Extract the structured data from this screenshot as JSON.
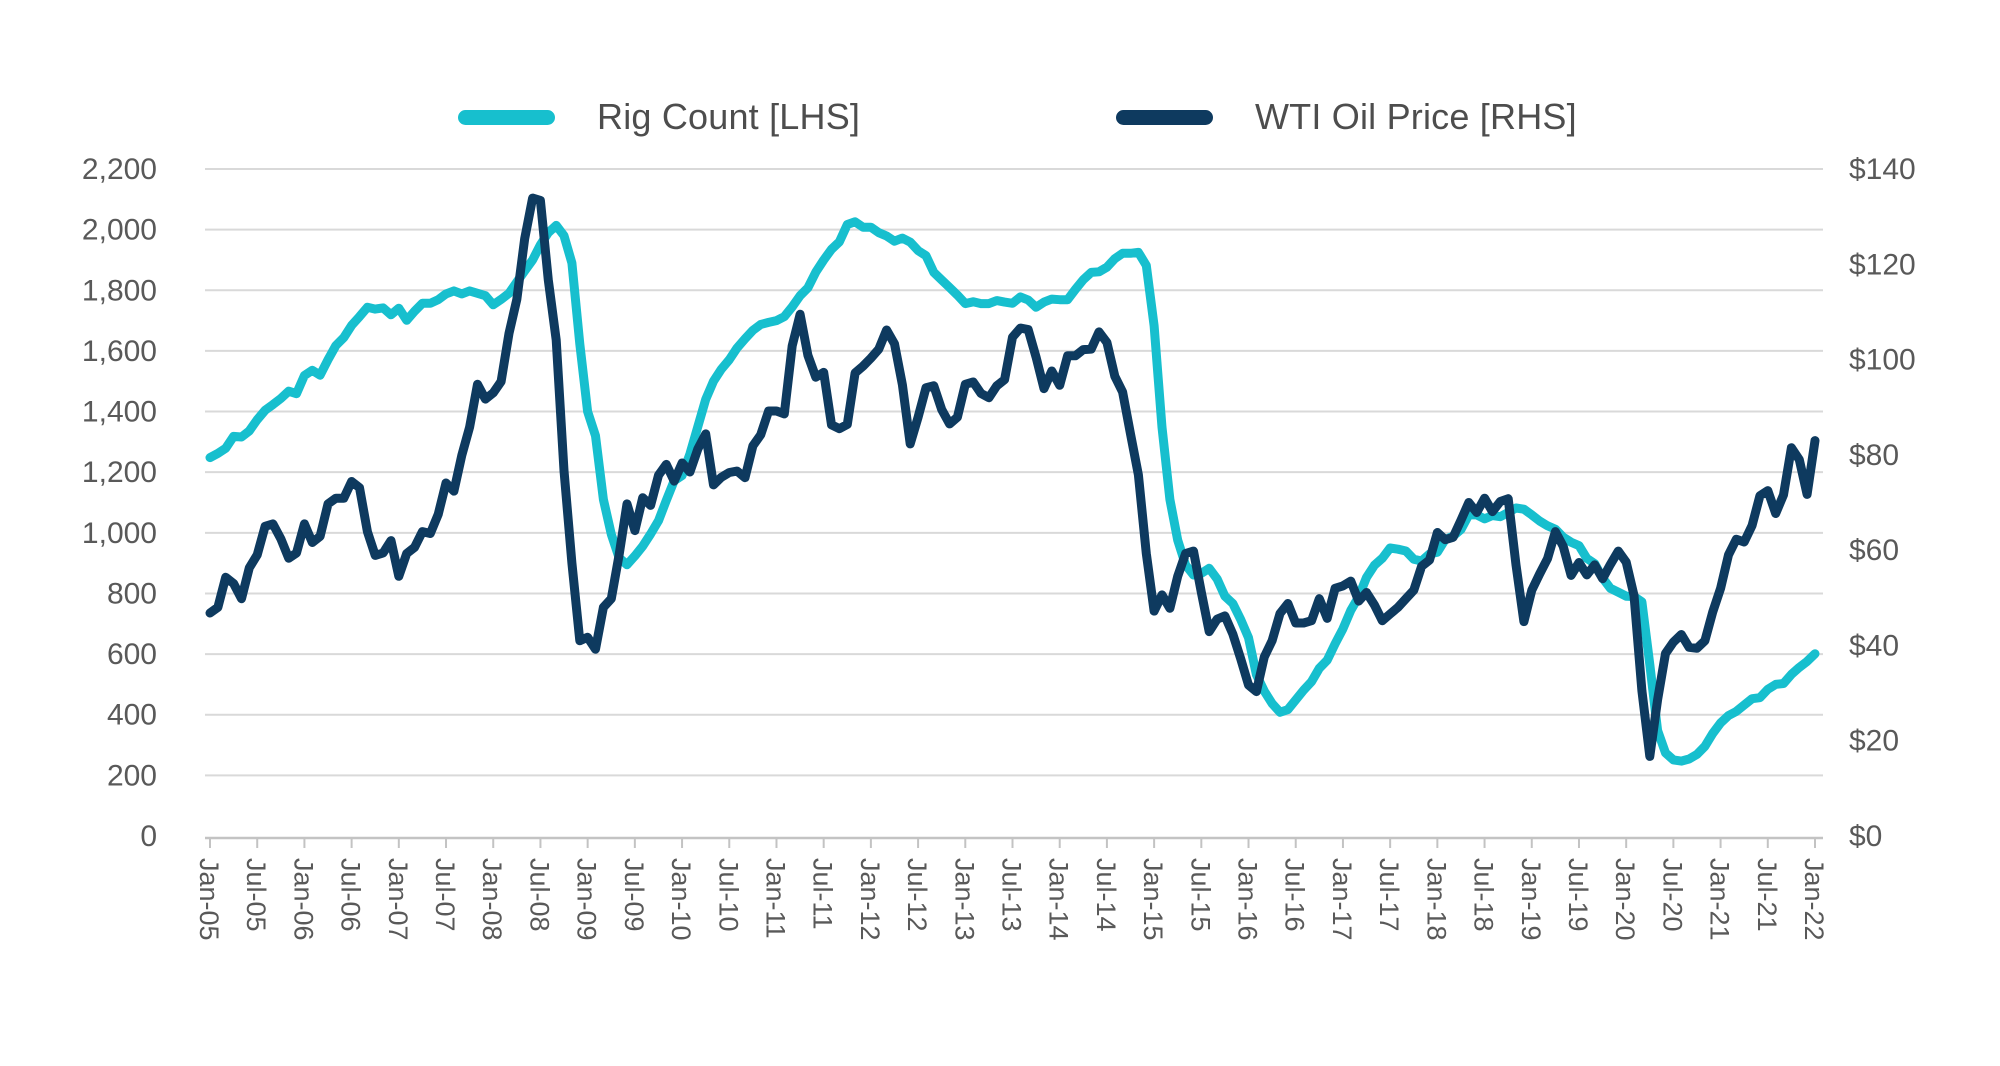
{
  "legend": {
    "items": [
      {
        "label": "Rig Count [LHS]",
        "color": "#17BFCE"
      },
      {
        "label": "WTI Oil Price [RHS]",
        "color": "#0E3A5F"
      }
    ]
  },
  "colors": {
    "rig_line": "#17BFCE",
    "wti_line": "#0E3A5F",
    "gridline": "#d9d9d9",
    "axis_line": "#c3c3c3",
    "tick_text": "#595959",
    "legend_text": "#4d4d4d",
    "background": "#ffffff"
  },
  "chart_data": {
    "type": "line",
    "title": "",
    "grid": "horizontal",
    "legend_position": "top",
    "x_interval": "monthly",
    "x_start": "Jan-05",
    "x_end": "Jan-22",
    "x_tick_labels": [
      "Jan-05",
      "Jul-05",
      "Jan-06",
      "Jul-06",
      "Jan-07",
      "Jul-07",
      "Jan-08",
      "Jul-08",
      "Jan-09",
      "Jul-09",
      "Jan-10",
      "Jul-10",
      "Jan-11",
      "Jul-11",
      "Jan-12",
      "Jul-12",
      "Jan-13",
      "Jul-13",
      "Jan-14",
      "Jul-14",
      "Jan-15",
      "Jul-15",
      "Jan-16",
      "Jul-16",
      "Jan-17",
      "Jul-17",
      "Jan-18",
      "Jul-18",
      "Jan-19",
      "Jul-19",
      "Jan-20",
      "Jul-20",
      "Jan-21",
      "Jul-21",
      "Jan-22"
    ],
    "left_axis": {
      "min": 0,
      "max": 2200,
      "tick_step": 200,
      "tick_labels": [
        "0",
        "200",
        "400",
        "600",
        "800",
        "1,000",
        "1,200",
        "1,400",
        "1,600",
        "1,800",
        "2,000",
        "2,200"
      ]
    },
    "right_axis": {
      "min": 0,
      "max": 140,
      "tick_step": 20,
      "tick_labels": [
        "$0",
        "$20",
        "$40",
        "$60",
        "$80",
        "$100",
        "$120",
        "$140"
      ]
    },
    "series": [
      {
        "name": "Rig Count [LHS]",
        "axis": "left",
        "color": "#17BFCE",
        "values": [
          1248,
          1262,
          1279,
          1318,
          1316,
          1336,
          1373,
          1404,
          1423,
          1443,
          1467,
          1459,
          1519,
          1536,
          1520,
          1571,
          1618,
          1644,
          1684,
          1713,
          1744,
          1738,
          1742,
          1719,
          1741,
          1701,
          1731,
          1757,
          1757,
          1769,
          1788,
          1798,
          1788,
          1798,
          1790,
          1782,
          1752,
          1770,
          1790,
          1827,
          1864,
          1900,
          1950,
          1990,
          2014,
          1980,
          1890,
          1623,
          1400,
          1320,
          1110,
          995,
          918,
          895,
          924,
          956,
          996,
          1040,
          1107,
          1172,
          1189,
          1260,
          1350,
          1440,
          1500,
          1540,
          1571,
          1610,
          1640,
          1668,
          1687,
          1694,
          1700,
          1713,
          1745,
          1782,
          1808,
          1860,
          1900,
          1935,
          1960,
          2017,
          2026,
          2008,
          2008,
          1990,
          1979,
          1962,
          1972,
          1959,
          1931,
          1914,
          1859,
          1834,
          1809,
          1784,
          1756,
          1762,
          1756,
          1756,
          1766,
          1761,
          1757,
          1778,
          1768,
          1744,
          1761,
          1771,
          1769,
          1769,
          1803,
          1835,
          1859,
          1861,
          1876,
          1904,
          1922,
          1922,
          1925,
          1882,
          1683,
          1348,
          1110,
          976,
          894,
          861,
          866,
          883,
          848,
          791,
          767,
          714,
          654,
          532,
          478,
          437,
          408,
          417,
          449,
          481,
          509,
          553,
          580,
          634,
          683,
          744,
          789,
          853,
          893,
          916,
          950,
          946,
          940,
          913,
          907,
          930,
          936,
          978,
          989,
          1011,
          1059,
          1059,
          1046,
          1057,
          1053,
          1067,
          1082,
          1078,
          1059,
          1039,
          1023,
          1012,
          986,
          969,
          958,
          916,
          898,
          851,
          817,
          804,
          791,
          790,
          772,
          566,
          348,
          274,
          251,
          247,
          254,
          269,
          296,
          338,
          373,
          397,
          411,
          432,
          453,
          456,
          484,
          500,
          503,
          533,
          556,
          576,
          601
        ]
      },
      {
        "name": "WTI Oil Price [RHS]",
        "axis": "right",
        "color": "#0E3A5F",
        "values": [
          46.8,
          48.0,
          54.3,
          53.0,
          49.8,
          56.3,
          59.0,
          65.0,
          65.5,
          62.4,
          58.3,
          59.4,
          65.5,
          61.6,
          62.9,
          69.7,
          70.9,
          70.9,
          74.4,
          73.1,
          63.9,
          58.9,
          59.4,
          62.0,
          54.5,
          59.3,
          60.6,
          63.9,
          63.5,
          67.5,
          74.1,
          72.4,
          79.9,
          85.8,
          94.8,
          91.7,
          93.0,
          95.4,
          105.5,
          112.6,
          125.4,
          133.9,
          133.4,
          116.7,
          104.1,
          76.7,
          57.3,
          41.0,
          41.7,
          39.2,
          48.0,
          49.8,
          59.0,
          69.7,
          64.1,
          71.0,
          69.4,
          75.7,
          78.0,
          74.5,
          78.3,
          76.4,
          81.2,
          84.4,
          73.7,
          75.3,
          76.3,
          76.6,
          75.2,
          81.9,
          84.2,
          89.2,
          89.2,
          88.6,
          102.9,
          109.5,
          100.9,
          96.3,
          97.3,
          86.3,
          85.5,
          86.4,
          97.2,
          98.6,
          100.3,
          102.2,
          106.2,
          103.3,
          94.7,
          82.3,
          87.9,
          94.1,
          94.5,
          89.5,
          86.5,
          87.9,
          94.8,
          95.3,
          92.9,
          92.0,
          94.5,
          95.8,
          104.7,
          106.6,
          106.3,
          100.5,
          93.9,
          97.6,
          94.6,
          100.8,
          100.8,
          102.1,
          102.2,
          105.8,
          103.6,
          96.5,
          93.2,
          84.4,
          75.8,
          59.3,
          47.2,
          50.6,
          47.8,
          54.5,
          59.3,
          59.8,
          51.2,
          42.9,
          45.5,
          46.2,
          42.4,
          37.2,
          31.7,
          30.3,
          37.6,
          41.0,
          46.7,
          48.8,
          44.7,
          44.7,
          45.2,
          49.8,
          45.7,
          52.0,
          52.5,
          53.5,
          49.3,
          51.1,
          48.5,
          45.2,
          46.6,
          48.0,
          49.8,
          51.6,
          56.6,
          57.9,
          63.7,
          62.2,
          62.7,
          66.3,
          70.0,
          67.9,
          70.9,
          68.1,
          70.2,
          70.8,
          56.9,
          45.0,
          51.6,
          55.0,
          58.2,
          63.9,
          60.8,
          54.7,
          57.4,
          54.8,
          56.9,
          54.0,
          57.0,
          59.8,
          57.5,
          50.5,
          30.5,
          16.7,
          28.6,
          38.3,
          40.7,
          42.3,
          39.6,
          39.4,
          41.0,
          47.0,
          52.0,
          59.0,
          62.3,
          61.7,
          65.2,
          71.4,
          72.5,
          67.7,
          71.6,
          81.5,
          79.0,
          71.7,
          83.0
        ]
      }
    ]
  }
}
